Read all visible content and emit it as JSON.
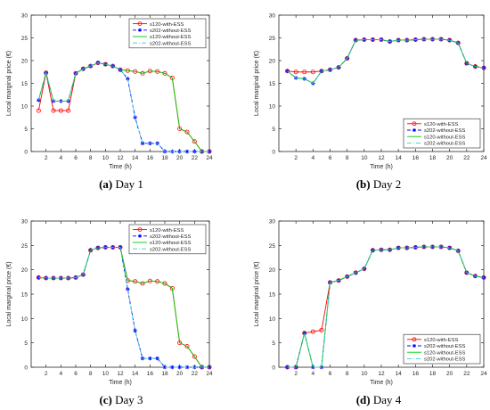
{
  "chart_data": [
    {
      "type": "line",
      "caption": {
        "label": "(a)",
        "text": "Day 1"
      },
      "xlabel": "Time (h)",
      "ylabel": "Local marginal price (€)",
      "xlim": [
        0,
        24
      ],
      "ylim": [
        0,
        30
      ],
      "xticks": [
        2,
        4,
        6,
        8,
        10,
        12,
        14,
        16,
        18,
        20,
        22,
        24
      ],
      "yticks": [
        0,
        5,
        10,
        15,
        20,
        25,
        30
      ],
      "grid": false,
      "legend_position": "top-right",
      "x": [
        1,
        2,
        3,
        4,
        5,
        6,
        7,
        8,
        9,
        10,
        11,
        12,
        13,
        14,
        15,
        16,
        17,
        18,
        19,
        20,
        21,
        22,
        23,
        24
      ],
      "series": [
        {
          "name": "s120-with-ESS",
          "color": "#ff0000",
          "style": "solid",
          "marker": "circle",
          "values": [
            9,
            17.3,
            9,
            9,
            9,
            17.2,
            18.2,
            18.8,
            19.5,
            19.2,
            18.8,
            18,
            17.8,
            17.6,
            17.2,
            17.7,
            17.6,
            17.2,
            16.2,
            5,
            4.3,
            2.2,
            0,
            0
          ]
        },
        {
          "name": "s202-without-ESS",
          "color": "#0000ff",
          "style": "dashed",
          "marker": "star",
          "values": [
            11.3,
            17.3,
            11.1,
            11.1,
            11.1,
            17.2,
            18.2,
            18.8,
            19.5,
            19.2,
            18.8,
            18,
            16,
            7.5,
            1.8,
            1.8,
            1.8,
            0,
            0,
            0,
            0,
            0,
            0,
            0
          ]
        },
        {
          "name": "s120-without-ESS",
          "color": "#00cc00",
          "style": "solid",
          "marker": "none",
          "values": [
            11.3,
            17.3,
            11.1,
            11.1,
            11.1,
            17.2,
            18.2,
            18.8,
            19.5,
            19.2,
            18.8,
            18,
            17.8,
            17.6,
            17.2,
            17.7,
            17.6,
            17.2,
            16.2,
            5,
            4.3,
            2.2,
            0,
            0
          ]
        },
        {
          "name": "s202-without-ESS",
          "color": "#33cccc",
          "style": "dashdot",
          "marker": "none",
          "values": [
            11.3,
            17.3,
            11.1,
            11.1,
            11.1,
            17.2,
            18.2,
            18.8,
            19.5,
            19.2,
            18.8,
            18,
            16,
            7.5,
            1.8,
            1.8,
            1.8,
            0,
            0,
            0,
            0,
            0,
            0,
            0
          ]
        }
      ]
    },
    {
      "type": "line",
      "caption": {
        "label": "(b)",
        "text": "Day 2"
      },
      "xlabel": "Time (h)",
      "ylabel": "Local marginal price (€)",
      "xlim": [
        0,
        24
      ],
      "ylim": [
        0,
        30
      ],
      "xticks": [
        2,
        4,
        6,
        8,
        10,
        12,
        14,
        16,
        18,
        20,
        22,
        24
      ],
      "yticks": [
        0,
        5,
        10,
        15,
        20,
        25,
        30
      ],
      "grid": false,
      "legend_position": "bottom-right",
      "x": [
        1,
        2,
        3,
        4,
        5,
        6,
        7,
        8,
        9,
        10,
        11,
        12,
        13,
        14,
        15,
        16,
        17,
        18,
        19,
        20,
        21,
        22,
        23,
        24
      ],
      "series": [
        {
          "name": "s120-with-ESS",
          "color": "#ff0000",
          "style": "solid",
          "marker": "circle",
          "values": [
            17.7,
            17.5,
            17.5,
            17.5,
            17.7,
            18,
            18.5,
            20.5,
            24.5,
            24.6,
            24.6,
            24.6,
            24.2,
            24.5,
            24.5,
            24.6,
            24.7,
            24.7,
            24.7,
            24.5,
            23.9,
            19.4,
            18.7,
            18.4
          ]
        },
        {
          "name": "s202-without-ESS",
          "color": "#0000ff",
          "style": "dashed",
          "marker": "star",
          "values": [
            17.7,
            16.2,
            16,
            15,
            17.7,
            18,
            18.5,
            20.5,
            24.5,
            24.6,
            24.6,
            24.6,
            24.2,
            24.5,
            24.5,
            24.6,
            24.7,
            24.7,
            24.7,
            24.5,
            23.9,
            19.4,
            18.7,
            18.4
          ]
        },
        {
          "name": "s120-without-ESS",
          "color": "#00cc00",
          "style": "solid",
          "marker": "none",
          "values": [
            17.7,
            16.2,
            16,
            15,
            17.7,
            18,
            18.5,
            20.5,
            24.5,
            24.6,
            24.6,
            24.6,
            24.2,
            24.5,
            24.5,
            24.6,
            24.7,
            24.7,
            24.7,
            24.5,
            23.9,
            19.4,
            18.7,
            18.4
          ]
        },
        {
          "name": "s202-without-ESS",
          "color": "#33cccc",
          "style": "dashdot",
          "marker": "none",
          "values": [
            17.7,
            16.2,
            16,
            15,
            17.7,
            18,
            18.5,
            20.5,
            24.5,
            24.6,
            24.6,
            24.6,
            24.2,
            24.5,
            24.5,
            24.6,
            24.7,
            24.7,
            24.7,
            24.5,
            23.9,
            19.4,
            18.7,
            18.4
          ]
        }
      ]
    },
    {
      "type": "line",
      "caption": {
        "label": "(c)",
        "text": "Day 3"
      },
      "xlabel": "Time (h)",
      "ylabel": "Local marginal price (€)",
      "xlim": [
        0,
        24
      ],
      "ylim": [
        0,
        30
      ],
      "xticks": [
        2,
        4,
        6,
        8,
        10,
        12,
        14,
        16,
        18,
        20,
        22,
        24
      ],
      "yticks": [
        0,
        5,
        10,
        15,
        20,
        25,
        30
      ],
      "grid": false,
      "legend_position": "top-right",
      "x": [
        1,
        2,
        3,
        4,
        5,
        6,
        7,
        8,
        9,
        10,
        11,
        12,
        13,
        14,
        15,
        16,
        17,
        18,
        19,
        20,
        21,
        22,
        23,
        24
      ],
      "series": [
        {
          "name": "s120-with-ESS",
          "color": "#ff0000",
          "style": "solid",
          "marker": "circle",
          "values": [
            18.4,
            18.3,
            18.3,
            18.3,
            18.3,
            18.4,
            19,
            24,
            24.5,
            24.6,
            24.6,
            24.6,
            17.8,
            17.6,
            17.2,
            17.7,
            17.6,
            17.2,
            16.2,
            5,
            4.3,
            2.2,
            0,
            0
          ]
        },
        {
          "name": "s202-without-ESS",
          "color": "#0000ff",
          "style": "dashed",
          "marker": "star",
          "values": [
            18.4,
            18.3,
            18.3,
            18.3,
            18.3,
            18.4,
            19,
            24,
            24.5,
            24.6,
            24.6,
            24.6,
            16,
            7.5,
            1.8,
            1.8,
            1.8,
            0,
            0,
            0,
            0,
            0,
            0,
            0
          ]
        },
        {
          "name": "s120-without-ESS",
          "color": "#00cc00",
          "style": "solid",
          "marker": "none",
          "values": [
            18.4,
            18.3,
            18.3,
            18.3,
            18.3,
            18.4,
            19,
            24,
            24.5,
            24.6,
            24.6,
            24.6,
            17.8,
            17.6,
            17.2,
            17.7,
            17.6,
            17.2,
            16.2,
            5,
            4.3,
            2.2,
            0,
            0
          ]
        },
        {
          "name": "s202-without-ESS",
          "color": "#33cccc",
          "style": "dashdot",
          "marker": "none",
          "values": [
            18.4,
            18.3,
            18.3,
            18.3,
            18.3,
            18.4,
            19,
            24,
            24.5,
            24.6,
            24.6,
            24.6,
            16,
            7.5,
            1.8,
            1.8,
            1.8,
            0,
            0,
            0,
            0,
            0,
            0,
            0
          ]
        }
      ]
    },
    {
      "type": "line",
      "caption": {
        "label": "(d)",
        "text": "Day 4"
      },
      "xlabel": "Time (h)",
      "ylabel": "Local marginal price (€)",
      "xlim": [
        0,
        24
      ],
      "ylim": [
        0,
        30
      ],
      "xticks": [
        2,
        4,
        6,
        8,
        10,
        12,
        14,
        16,
        18,
        20,
        22,
        24
      ],
      "yticks": [
        0,
        5,
        10,
        15,
        20,
        25,
        30
      ],
      "grid": false,
      "legend_position": "bottom-right",
      "x": [
        1,
        2,
        3,
        4,
        5,
        6,
        7,
        8,
        9,
        10,
        11,
        12,
        13,
        14,
        15,
        16,
        17,
        18,
        19,
        20,
        21,
        22,
        23,
        24
      ],
      "series": [
        {
          "name": "s120-with-ESS",
          "color": "#ff0000",
          "style": "solid",
          "marker": "circle",
          "values": [
            0,
            0,
            7,
            7.3,
            7.6,
            17.4,
            17.8,
            18.6,
            19.4,
            20.2,
            24,
            24.1,
            24.1,
            24.5,
            24.5,
            24.6,
            24.7,
            24.7,
            24.7,
            24.5,
            23.9,
            19.4,
            18.7,
            18.4
          ]
        },
        {
          "name": "s202-without-ESS",
          "color": "#0000ff",
          "style": "dashed",
          "marker": "star",
          "values": [
            0,
            0,
            7,
            0,
            0,
            17.4,
            17.8,
            18.6,
            19.4,
            20.2,
            24,
            24.1,
            24.1,
            24.5,
            24.5,
            24.6,
            24.7,
            24.7,
            24.7,
            24.5,
            23.9,
            19.4,
            18.7,
            18.4
          ]
        },
        {
          "name": "s120-without-ESS",
          "color": "#00cc00",
          "style": "solid",
          "marker": "none",
          "values": [
            0,
            0,
            7,
            0,
            0,
            17.4,
            17.8,
            18.6,
            19.4,
            20.2,
            24,
            24.1,
            24.1,
            24.5,
            24.5,
            24.6,
            24.7,
            24.7,
            24.7,
            24.5,
            23.9,
            19.4,
            18.7,
            18.4
          ]
        },
        {
          "name": "s202-without-ESS",
          "color": "#33cccc",
          "style": "dashdot",
          "marker": "none",
          "values": [
            0,
            0,
            7,
            0,
            0,
            17.4,
            17.8,
            18.6,
            19.4,
            20.2,
            24,
            24.1,
            24.1,
            24.5,
            24.5,
            24.6,
            24.7,
            24.7,
            24.7,
            24.5,
            23.9,
            19.4,
            18.7,
            18.4
          ]
        }
      ]
    }
  ]
}
